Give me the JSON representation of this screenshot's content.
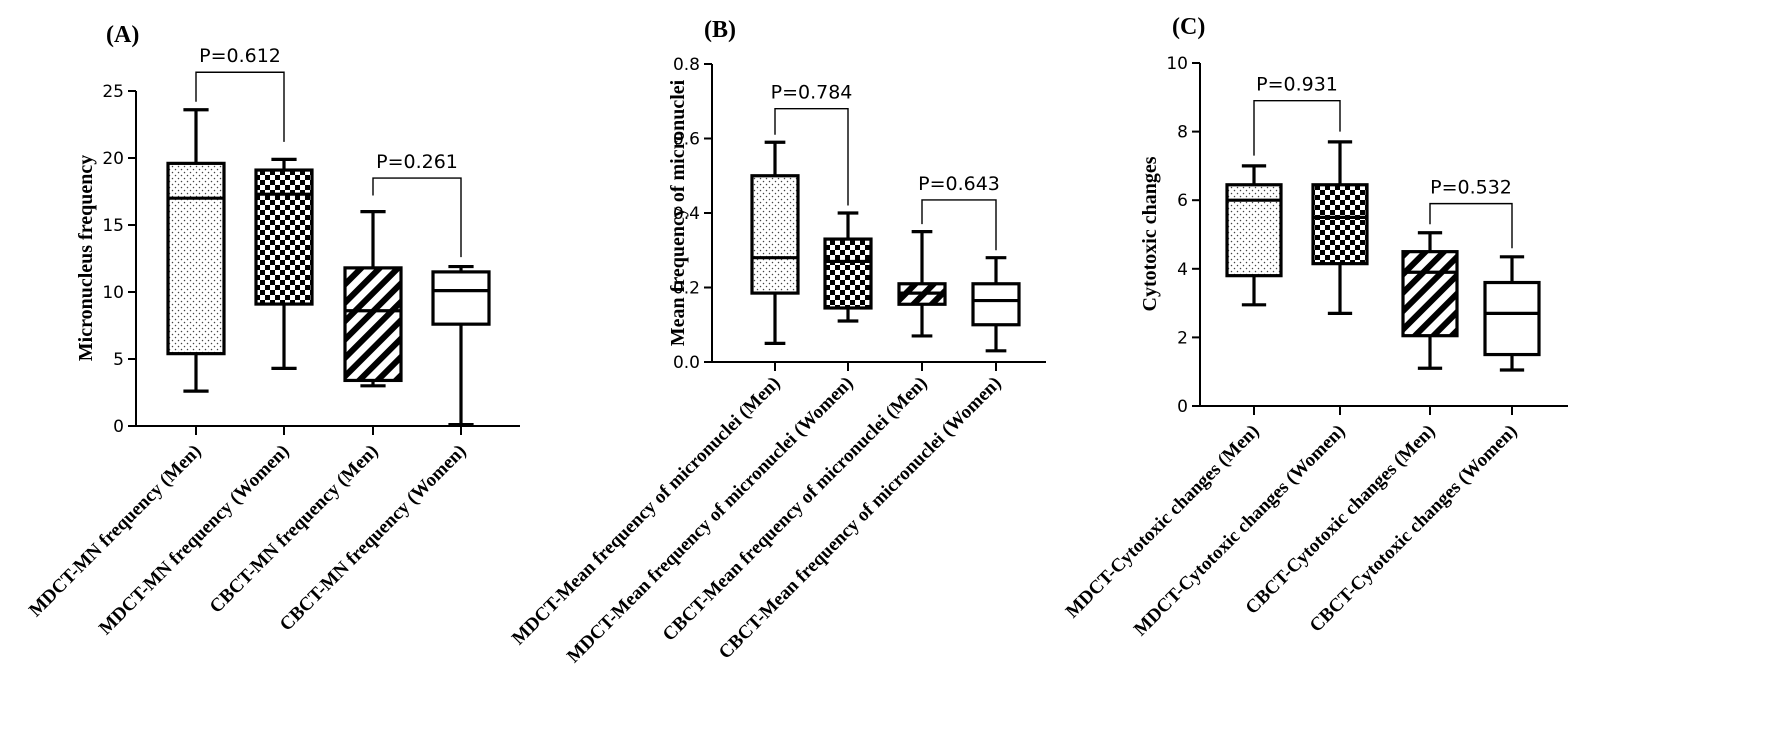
{
  "chart_data": [
    {
      "type": "box",
      "panel": "(A)",
      "ylabel": "Micronucleus frequency",
      "ylim": [
        0,
        25
      ],
      "yticks": [
        0,
        5,
        10,
        15,
        20,
        25
      ],
      "categories": [
        "MDCT-MN frequency (Men)",
        "MDCT-MN frequency (Women)",
        "CBCT-MN frequency (Men)",
        "CBCT-MN frequency (Women)"
      ],
      "boxes": [
        {
          "min": 2.6,
          "q1": 5.4,
          "median": 17.0,
          "q3": 19.6,
          "max": 23.6,
          "pattern": "dots"
        },
        {
          "min": 4.3,
          "q1": 9.1,
          "median": 17.3,
          "q3": 19.1,
          "max": 19.9,
          "pattern": "checker"
        },
        {
          "min": 3.0,
          "q1": 3.4,
          "median": 8.6,
          "q3": 11.8,
          "max": 16.0,
          "pattern": "diagonal"
        },
        {
          "min": 0.1,
          "q1": 7.6,
          "median": 10.1,
          "q3": 11.5,
          "max": 11.9,
          "pattern": "none"
        }
      ],
      "comparisons": [
        {
          "from": 0,
          "to": 1,
          "label": "P=0.612",
          "y_top": 26.4,
          "y_left": 24.2,
          "y_right": 21.2
        },
        {
          "from": 2,
          "to": 3,
          "label": "P=0.261",
          "y_top": 18.5,
          "y_left": 17.2,
          "y_right": 12.6
        }
      ]
    },
    {
      "type": "box",
      "panel": "(B)",
      "ylabel": "Mean frequency of micronuclei",
      "ylim": [
        0,
        0.8
      ],
      "yticks": [
        0.0,
        0.2,
        0.4,
        0.6,
        0.8
      ],
      "tick_decimals": 1,
      "categories": [
        "MDCT-Mean frequency of micronuclei (Men)",
        "MDCT-Mean frequency of micronuclei (Women)",
        "CBCT-Mean frequency of micronuclei (Men)",
        "CBCT-Mean frequency of micronuclei (Women)"
      ],
      "boxes": [
        {
          "min": 0.05,
          "q1": 0.185,
          "median": 0.28,
          "q3": 0.5,
          "max": 0.59,
          "pattern": "dots"
        },
        {
          "min": 0.11,
          "q1": 0.145,
          "median": 0.27,
          "q3": 0.33,
          "max": 0.4,
          "pattern": "checker"
        },
        {
          "min": 0.07,
          "q1": 0.155,
          "median": 0.185,
          "q3": 0.21,
          "max": 0.35,
          "pattern": "diagonal"
        },
        {
          "min": 0.03,
          "q1": 0.1,
          "median": 0.165,
          "q3": 0.21,
          "max": 0.28,
          "pattern": "none"
        }
      ],
      "comparisons": [
        {
          "from": 0,
          "to": 1,
          "label": "P=0.784",
          "y_top": 0.68,
          "y_left": 0.61,
          "y_right": 0.42
        },
        {
          "from": 2,
          "to": 3,
          "label": "P=0.643",
          "y_top": 0.435,
          "y_left": 0.37,
          "y_right": 0.3
        }
      ]
    },
    {
      "type": "box",
      "panel": "(C)",
      "ylabel": "Cytotoxic changes",
      "ylim": [
        0,
        10
      ],
      "yticks": [
        0,
        2,
        4,
        6,
        8,
        10
      ],
      "categories": [
        "MDCT-Cytotoxic changes (Men)",
        "MDCT-Cytotoxic changes (Women)",
        "CBCT-Cytotoxic changes (Men)",
        "CBCT-Cytotoxic changes (Women)"
      ],
      "boxes": [
        {
          "min": 2.95,
          "q1": 3.8,
          "median": 6.0,
          "q3": 6.45,
          "max": 7.0,
          "pattern": "dots"
        },
        {
          "min": 2.7,
          "q1": 4.15,
          "median": 5.5,
          "q3": 6.45,
          "max": 7.7,
          "pattern": "checker"
        },
        {
          "min": 1.1,
          "q1": 2.05,
          "median": 3.9,
          "q3": 4.5,
          "max": 5.05,
          "pattern": "diagonal"
        },
        {
          "min": 1.05,
          "q1": 1.5,
          "median": 2.7,
          "q3": 3.6,
          "max": 4.35,
          "pattern": "none"
        }
      ],
      "comparisons": [
        {
          "from": 0,
          "to": 1,
          "label": "P=0.931",
          "y_top": 8.9,
          "y_left": 7.3,
          "y_right": 8.0
        },
        {
          "from": 2,
          "to": 3,
          "label": "P=0.532",
          "y_top": 5.9,
          "y_left": 5.3,
          "y_right": 4.6
        }
      ]
    }
  ]
}
